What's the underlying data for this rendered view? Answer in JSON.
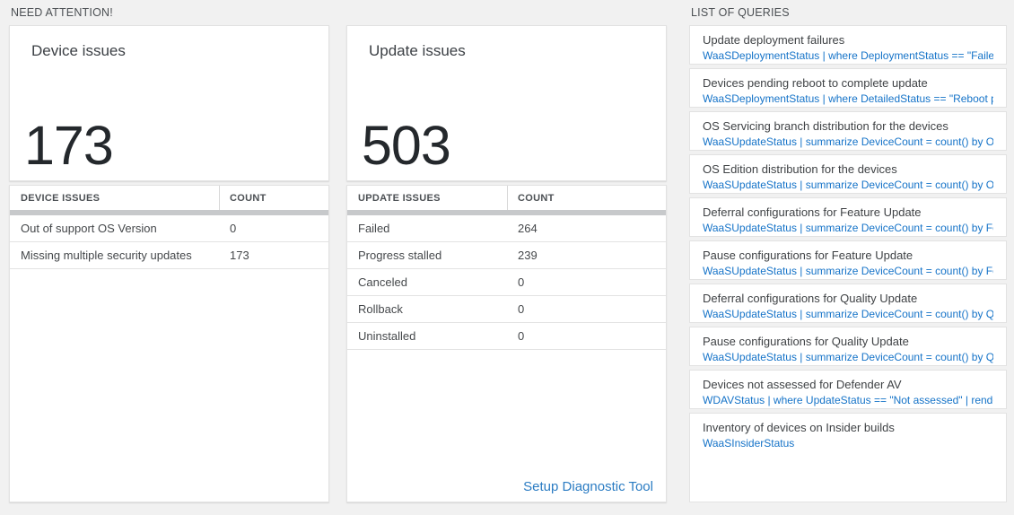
{
  "colors": {
    "page_background": "#f1f1f1",
    "card_background": "#ffffff",
    "query_link_blue": "#1573c8",
    "footer_link_blue": "#2b7cc3",
    "big_number_color": "#24282c",
    "scrollband_gray": "#c7c9cb"
  },
  "need_attention": {
    "section_title": "NEED ATTENTION!",
    "device_tile": {
      "title": "Device issues",
      "count": "173"
    },
    "device_table": {
      "columns": [
        "DEVICE ISSUES",
        "COUNT"
      ],
      "rows": [
        {
          "label": "Out of support OS Version",
          "count": "0"
        },
        {
          "label": "Missing multiple security updates",
          "count": "173"
        }
      ]
    },
    "update_tile": {
      "title": "Update issues",
      "count": "503"
    },
    "update_table": {
      "columns": [
        "UPDATE ISSUES",
        "COUNT"
      ],
      "rows": [
        {
          "label": "Failed",
          "count": "264"
        },
        {
          "label": "Progress stalled",
          "count": "239"
        },
        {
          "label": "Canceled",
          "count": "0"
        },
        {
          "label": "Rollback",
          "count": "0"
        },
        {
          "label": "Uninstalled",
          "count": "0"
        }
      ],
      "footer_link": "Setup Diagnostic Tool"
    }
  },
  "queries": {
    "section_title": "LIST OF QUERIES",
    "items": [
      {
        "title": "Update deployment failures",
        "query": "WaaSDeploymentStatus | where DeploymentStatus == \"Failed\" |..."
      },
      {
        "title": "Devices pending reboot to complete update",
        "query": "WaaSDeploymentStatus | where DetailedStatus == \"Reboot pend..."
      },
      {
        "title": "OS Servicing branch distribution for the devices",
        "query": "WaaSUpdateStatus | summarize DeviceCount = count() by OSSer..."
      },
      {
        "title": "OS Edition distribution for the devices",
        "query": "WaaSUpdateStatus | summarize DeviceCount = count() by OSEdit..."
      },
      {
        "title": "Deferral configurations for Feature Update",
        "query": "WaaSUpdateStatus | summarize DeviceCount = count() by Featur..."
      },
      {
        "title": "Pause configurations for Feature Update",
        "query": "WaaSUpdateStatus | summarize DeviceCount = count() by Featur..."
      },
      {
        "title": "Deferral configurations for Quality Update",
        "query": "WaaSUpdateStatus | summarize DeviceCount = count() by Qualit..."
      },
      {
        "title": "Pause configurations for Quality Update",
        "query": "WaaSUpdateStatus | summarize DeviceCount = count() by Qualit..."
      },
      {
        "title": "Devices not assessed for Defender AV",
        "query": "WDAVStatus | where UpdateStatus == \"Not assessed\" | render ta..."
      },
      {
        "title": "Inventory of devices on Insider builds",
        "query": "WaaSInsiderStatus"
      }
    ]
  }
}
